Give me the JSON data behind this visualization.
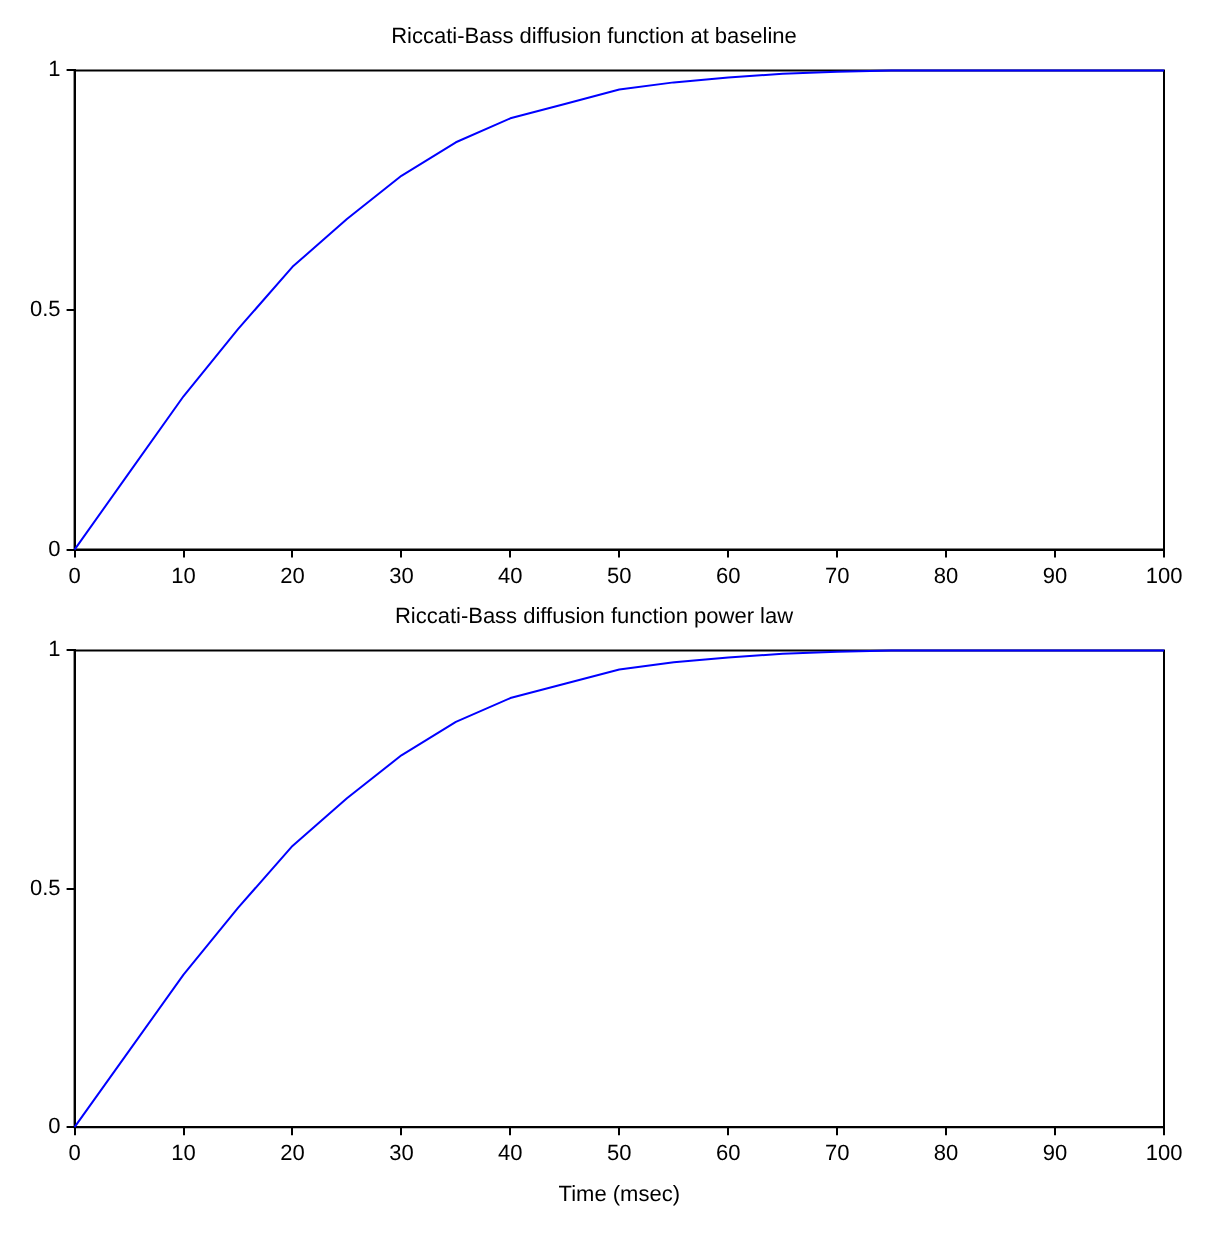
{
  "chart_data": [
    {
      "type": "line",
      "title": "Riccati-Bass diffusion function at baseline",
      "x": [
        0,
        5,
        10,
        15,
        20,
        25,
        30,
        35,
        40,
        45,
        50,
        55,
        60,
        65,
        70,
        75,
        80,
        90,
        100
      ],
      "series": [
        {
          "color": "#0000ff",
          "values": [
            0,
            0.16,
            0.32,
            0.46,
            0.59,
            0.69,
            0.78,
            0.85,
            0.9,
            0.93,
            0.96,
            0.975,
            0.985,
            0.993,
            0.997,
            1,
            1,
            1,
            1
          ]
        }
      ],
      "xlim": [
        0,
        100
      ],
      "xticks": [
        0,
        10,
        20,
        30,
        40,
        50,
        60,
        70,
        80,
        90,
        100
      ],
      "ylim": [
        0,
        1
      ],
      "yticks": [
        0,
        0.5,
        1
      ],
      "grid": false,
      "legend": false,
      "marker": "none",
      "line_style": "solid"
    },
    {
      "type": "line",
      "title": "Riccati-Bass diffusion function power law",
      "xlabel": "Time (msec)",
      "x": [
        0,
        5,
        10,
        15,
        20,
        25,
        30,
        35,
        40,
        45,
        50,
        55,
        60,
        65,
        70,
        75,
        80,
        90,
        100
      ],
      "series": [
        {
          "color": "#0000ff",
          "values": [
            0,
            0.16,
            0.32,
            0.46,
            0.59,
            0.69,
            0.78,
            0.85,
            0.9,
            0.93,
            0.96,
            0.975,
            0.985,
            0.993,
            0.997,
            1,
            1,
            1,
            1
          ]
        }
      ],
      "xlim": [
        0,
        100
      ],
      "xticks": [
        0,
        10,
        20,
        30,
        40,
        50,
        60,
        70,
        80,
        90,
        100
      ],
      "ylim": [
        0,
        1
      ],
      "yticks": [
        0,
        0.5,
        1
      ],
      "grid": false,
      "legend": false,
      "marker": "none",
      "line_style": "solid"
    }
  ]
}
